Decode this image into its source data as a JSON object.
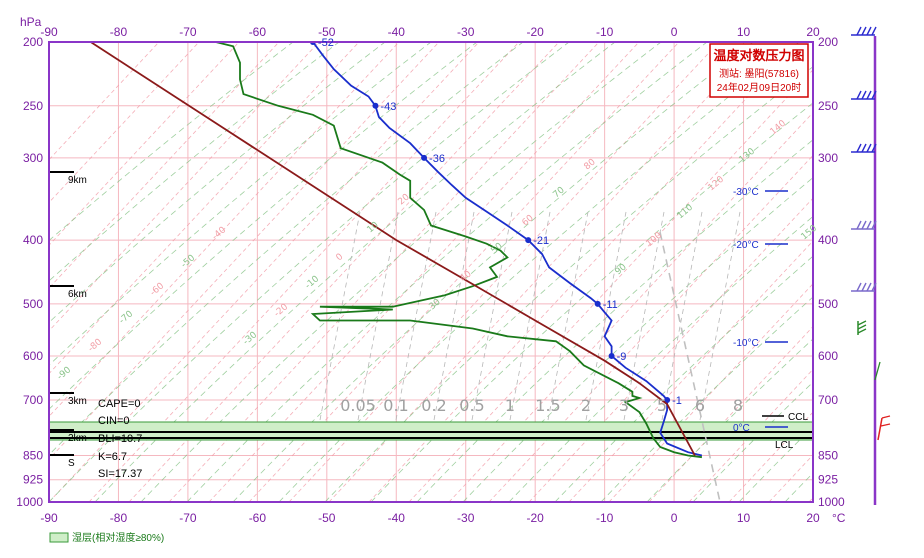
{
  "chart_data": {
    "type": "line",
    "title": "温度对数压力图",
    "station": "测站: 墨阳(57816)",
    "datetime": "24年02月09日20时",
    "y_unit": "hPa",
    "x_unit": "°C",
    "xlim": [
      -90,
      20
    ],
    "ylim": [
      1000,
      200
    ],
    "y_scale": "log",
    "x_ticks": [
      -90,
      -80,
      -70,
      -60,
      -50,
      -40,
      -30,
      -20,
      -10,
      0,
      10,
      20
    ],
    "y_ticks": [
      200,
      250,
      300,
      400,
      500,
      600,
      700,
      850,
      925,
      1000
    ],
    "series": [
      {
        "color": "#1a2ecc",
        "points": [
          [
            -52,
            200
          ],
          [
            -50.5,
            210
          ],
          [
            -49,
            220
          ],
          [
            -46.5,
            233
          ],
          [
            -44,
            242
          ],
          [
            -43,
            250
          ],
          [
            -42.5,
            260
          ],
          [
            -41,
            270
          ],
          [
            -38,
            285
          ],
          [
            -36,
            300
          ],
          [
            -34,
            315
          ],
          [
            -32,
            330
          ],
          [
            -30,
            345
          ],
          [
            -27,
            362
          ],
          [
            -24,
            380
          ],
          [
            -21,
            400
          ],
          [
            -19,
            420
          ],
          [
            -18,
            440
          ],
          [
            -15,
            465
          ],
          [
            -12,
            490
          ],
          [
            -11,
            500
          ],
          [
            -10,
            515
          ],
          [
            -9,
            530
          ],
          [
            -9.5,
            545
          ],
          [
            -10,
            560
          ],
          [
            -9,
            580
          ],
          [
            -9,
            600
          ],
          [
            -7,
            625
          ],
          [
            -4,
            655
          ],
          [
            -1.5,
            690
          ],
          [
            -1,
            700
          ],
          [
            -1,
            725
          ],
          [
            -1.5,
            755
          ],
          [
            -2,
            785
          ],
          [
            -1,
            815
          ],
          [
            2,
            840
          ],
          [
            4,
            850
          ]
        ],
        "labeled": [
          [
            "-52",
            -52,
            200
          ],
          [
            "-43",
            -43,
            250
          ],
          [
            "-36",
            -36,
            300
          ],
          [
            "-21",
            -21,
            400
          ],
          [
            "-11",
            -11,
            500
          ],
          [
            "-9",
            -9,
            600
          ],
          [
            "-1",
            -1,
            700
          ]
        ]
      },
      {
        "color": "#1a7a1a",
        "points": [
          [
            -66,
            200
          ],
          [
            -63.5,
            203
          ],
          [
            -62.5,
            215
          ],
          [
            -62.5,
            228
          ],
          [
            -62,
            240
          ],
          [
            -57,
            250
          ],
          [
            -52,
            258
          ],
          [
            -49,
            268
          ],
          [
            -48,
            290
          ],
          [
            -42,
            305
          ],
          [
            -39.5,
            318
          ],
          [
            -38,
            325
          ],
          [
            -38,
            345
          ],
          [
            -36,
            360
          ],
          [
            -35,
            380
          ],
          [
            -30,
            395
          ],
          [
            -27,
            405
          ],
          [
            -25,
            415
          ],
          [
            -24,
            425
          ],
          [
            -26.5,
            440
          ],
          [
            -25.5,
            455
          ],
          [
            -29,
            470
          ],
          [
            -33,
            485
          ],
          [
            -40.5,
            505
          ],
          [
            -51,
            505
          ],
          [
            -40.5,
            510
          ],
          [
            -52,
            518
          ],
          [
            -51,
            530
          ],
          [
            -38,
            530
          ],
          [
            -29,
            545
          ],
          [
            -24,
            560
          ],
          [
            -17,
            570
          ],
          [
            -15,
            590
          ],
          [
            -13,
            620
          ],
          [
            -8,
            660
          ],
          [
            -6,
            680
          ],
          [
            -6,
            690
          ],
          [
            -5,
            695
          ],
          [
            -7,
            705
          ],
          [
            -5,
            730
          ],
          [
            -4,
            760
          ],
          [
            -3,
            800
          ],
          [
            -2,
            825
          ],
          [
            0,
            840
          ],
          [
            2,
            850
          ],
          [
            4,
            855
          ]
        ]
      },
      {
        "color": "#8b1a1a",
        "points": [
          [
            -84,
            200
          ],
          [
            -40,
            400
          ],
          [
            -30,
            460
          ],
          [
            -20,
            530
          ],
          [
            -10,
            610
          ],
          [
            -5,
            660
          ],
          [
            -1,
            710
          ],
          [
            3,
            850
          ]
        ]
      }
    ],
    "isotherm_labels": [
      "-30°C",
      "-20°C",
      "-10°C",
      "0°C"
    ],
    "isotherm_values": [
      -30,
      -20,
      -10,
      0
    ],
    "height_markers": [
      "9km",
      "6km",
      "3km",
      "2km",
      "S"
    ],
    "indices": [
      "CAPE=0",
      "CIN=0",
      "BLI=10.7",
      "K=6.7",
      "SI=17.37"
    ],
    "levels": [
      "CCL",
      "LCL"
    ],
    "legend": "湿层(相对湿度≥80%)",
    "mixing_ratio_labels": [
      "0.05",
      "0.1",
      "0.2",
      "0.5",
      "1",
      "1.5",
      "2",
      "3",
      "5",
      "6",
      "8"
    ],
    "dry_adiabat_labels": [
      "-90",
      "-80",
      "-70",
      "-60",
      "-50",
      "-40",
      "-30",
      "-20",
      "-10",
      "0",
      "10",
      "20",
      "30",
      "40",
      "50",
      "60",
      "70",
      "80",
      "90",
      "100",
      "110",
      "120",
      "130",
      "140",
      "150",
      "160"
    ]
  }
}
